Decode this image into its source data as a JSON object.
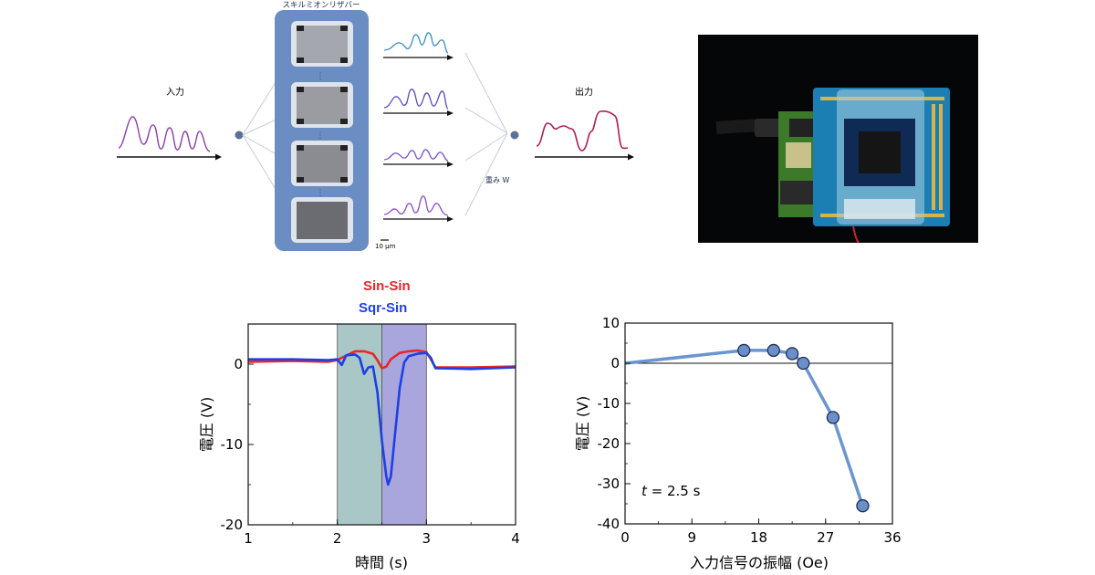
{
  "diagram": {
    "reservoir_title": "スキルミオンリザバー",
    "input_label": "入力",
    "output_label": "出力",
    "weight_label": "重み W",
    "scalebar_label": "10 µm"
  },
  "chart_data": [
    {
      "type": "line",
      "title": "",
      "xlabel": "時間 (s)",
      "ylabel": "電圧 (V)",
      "xlim": [
        1,
        4
      ],
      "ylim": [
        -20,
        5
      ],
      "xticks": [
        1,
        2,
        3,
        4
      ],
      "yticks": [
        0,
        -10,
        -20
      ],
      "legend": [
        "Sin-Sin",
        "Sqr-Sin"
      ],
      "legend_position": "top-center",
      "shaded_regions": [
        {
          "from": 2.0,
          "to": 2.5,
          "color": "#a9c7c6"
        },
        {
          "from": 2.5,
          "to": 3.0,
          "color": "#a8a6dc"
        }
      ],
      "series": [
        {
          "name": "Sin-Sin",
          "color": "#e8262a",
          "x": [
            1.0,
            1.5,
            1.9,
            2.0,
            2.05,
            2.2,
            2.3,
            2.4,
            2.45,
            2.5,
            2.55,
            2.6,
            2.7,
            2.8,
            2.9,
            3.0,
            3.05,
            3.1,
            3.5,
            4.0
          ],
          "y": [
            0.3,
            0.4,
            0.3,
            0.5,
            0.8,
            1.6,
            1.6,
            1.3,
            0.5,
            -0.5,
            -0.3,
            0.6,
            1.4,
            1.6,
            1.7,
            1.5,
            0.6,
            -0.4,
            -0.4,
            -0.3
          ]
        },
        {
          "name": "Sqr-Sin",
          "color": "#1f3fe6",
          "x": [
            1.0,
            1.5,
            1.9,
            2.0,
            2.05,
            2.1,
            2.2,
            2.25,
            2.3,
            2.35,
            2.4,
            2.45,
            2.5,
            2.55,
            2.57,
            2.6,
            2.65,
            2.7,
            2.75,
            2.8,
            2.9,
            3.0,
            3.05,
            3.1,
            3.5,
            4.0
          ],
          "y": [
            0.6,
            0.6,
            0.5,
            0.6,
            -0.1,
            1.1,
            1.2,
            0.8,
            -1.2,
            -0.4,
            -0.3,
            -3.5,
            -9.5,
            -14.0,
            -15.0,
            -14.0,
            -8.5,
            -3.0,
            0.2,
            1.0,
            1.3,
            1.4,
            0.8,
            -0.5,
            -0.6,
            -0.4
          ]
        }
      ]
    },
    {
      "type": "scatter",
      "title": "",
      "xlabel": "入力信号の振幅 (Oe)",
      "ylabel": "電圧 (V)",
      "xlim": [
        0,
        36
      ],
      "ylim": [
        -40,
        10
      ],
      "xticks": [
        0,
        9,
        18,
        27,
        36
      ],
      "yticks": [
        10,
        0,
        -10,
        -20,
        -30,
        -40
      ],
      "annotation": {
        "italic": "t",
        "text": " = 2.5 s",
        "x": 2.5,
        "y": -32
      },
      "series": [
        {
          "name": "",
          "line_from_origin": true,
          "x": [
            0,
            16,
            20,
            22.5,
            24,
            28,
            32
          ],
          "y": [
            0,
            3.2,
            3.2,
            2.4,
            0.0,
            -13.5,
            -35.5
          ],
          "markers": [
            false,
            true,
            true,
            true,
            true,
            true,
            true
          ]
        }
      ]
    }
  ]
}
